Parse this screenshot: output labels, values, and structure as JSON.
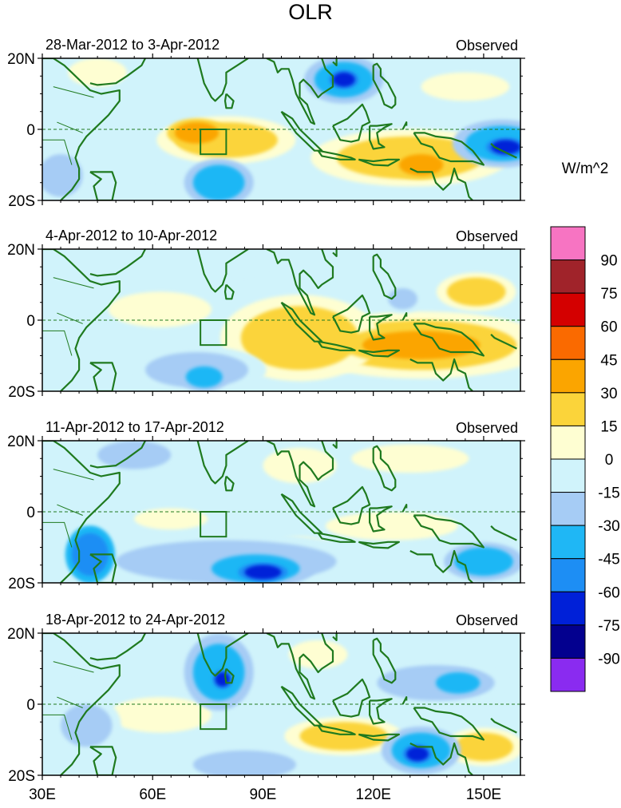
{
  "chart_data": {
    "type": "heatmap",
    "title": "OLR",
    "units_label": "W/m^2",
    "x_ticks": [
      "30E",
      "60E",
      "90E",
      "120E",
      "150E"
    ],
    "x_tick_values": [
      30,
      60,
      90,
      120,
      150
    ],
    "xlim": [
      30,
      160
    ],
    "y_ticks": [
      "20N",
      "0",
      "20S"
    ],
    "y_tick_values": [
      20,
      0,
      -20
    ],
    "ylim": [
      -20,
      20
    ],
    "equator_line": "dashed",
    "box_region": {
      "lon": [
        73,
        80
      ],
      "lat": [
        -7,
        0
      ]
    },
    "colorbar": {
      "levels": [
        90,
        75,
        60,
        45,
        30,
        15,
        0,
        -15,
        -30,
        -45,
        -60,
        -75,
        -90
      ],
      "colors": [
        "#f774c2",
        "#a0232a",
        "#d40000",
        "#fa6a00",
        "#fba500",
        "#fbd43a",
        "#fefed2",
        "#d0f3fb",
        "#a6ccf5",
        "#1fb7f5",
        "#1d8ef4",
        "#0020d8",
        "#03008f",
        "#8a2bf0"
      ]
    },
    "panels": [
      {
        "period": "28-Mar-2012 to 3-Apr-2012",
        "label": "Observed",
        "anomalies": [
          {
            "lon": 80,
            "lat": -3,
            "rx": 14,
            "ry": 5,
            "v": 30
          },
          {
            "lon": 72,
            "lat": -1,
            "rx": 6,
            "ry": 3,
            "v": 45
          },
          {
            "lon": 130,
            "lat": -8,
            "rx": 20,
            "ry": 6,
            "v": 30
          },
          {
            "lon": 133,
            "lat": -10,
            "rx": 6,
            "ry": 3,
            "v": 45
          },
          {
            "lon": 112,
            "lat": 14,
            "rx": 8,
            "ry": 5,
            "v": -45
          },
          {
            "lon": 112,
            "lat": 14,
            "rx": 3,
            "ry": 2,
            "v": -75
          },
          {
            "lon": 155,
            "lat": -4,
            "rx": 10,
            "ry": 5,
            "v": -45
          },
          {
            "lon": 156,
            "lat": -5,
            "rx": 4,
            "ry": 2,
            "v": -75
          },
          {
            "lon": 78,
            "lat": -15,
            "rx": 7,
            "ry": 5,
            "v": -45
          },
          {
            "lon": 35,
            "lat": -13,
            "rx": 6,
            "ry": 6,
            "v": -30
          },
          {
            "lon": 45,
            "lat": 16,
            "rx": 8,
            "ry": 4,
            "v": 15
          },
          {
            "lon": 145,
            "lat": 12,
            "rx": 12,
            "ry": 4,
            "v": 15
          },
          {
            "lon": 95,
            "lat": 10,
            "rx": 6,
            "ry": 5,
            "v": -15
          },
          {
            "lon": 60,
            "lat": -12,
            "rx": 5,
            "ry": 4,
            "v": -15
          }
        ]
      },
      {
        "period": "4-Apr-2012 to 10-Apr-2012",
        "label": "Observed",
        "anomalies": [
          {
            "lon": 133,
            "lat": -7,
            "rx": 26,
            "ry": 7,
            "v": 30
          },
          {
            "lon": 133,
            "lat": -7,
            "rx": 16,
            "ry": 4,
            "v": 45
          },
          {
            "lon": 100,
            "lat": -5,
            "rx": 16,
            "ry": 9,
            "v": 30
          },
          {
            "lon": 62,
            "lat": 3,
            "rx": 14,
            "ry": 5,
            "v": 15
          },
          {
            "lon": 148,
            "lat": 8,
            "rx": 8,
            "ry": 4,
            "v": 30
          },
          {
            "lon": 72,
            "lat": -14,
            "rx": 14,
            "ry": 5,
            "v": -30
          },
          {
            "lon": 74,
            "lat": -16,
            "rx": 5,
            "ry": 3,
            "v": -45
          },
          {
            "lon": 40,
            "lat": -10,
            "rx": 6,
            "ry": 5,
            "v": -15
          },
          {
            "lon": 42,
            "lat": 16,
            "rx": 8,
            "ry": 4,
            "v": -15
          },
          {
            "lon": 128,
            "lat": 6,
            "rx": 4,
            "ry": 3,
            "v": -30
          },
          {
            "lon": 85,
            "lat": 15,
            "rx": 8,
            "ry": 4,
            "v": -15
          }
        ]
      },
      {
        "period": "11-Apr-2012 to 17-Apr-2012",
        "label": "Observed",
        "anomalies": [
          {
            "lon": 80,
            "lat": -14,
            "rx": 30,
            "ry": 6,
            "v": -30
          },
          {
            "lon": 88,
            "lat": -16,
            "rx": 12,
            "ry": 4,
            "v": -45
          },
          {
            "lon": 90,
            "lat": -17,
            "rx": 5,
            "ry": 2,
            "v": -75
          },
          {
            "lon": 43,
            "lat": -12,
            "rx": 5,
            "ry": 6,
            "v": -60
          },
          {
            "lon": 55,
            "lat": 16,
            "rx": 10,
            "ry": 4,
            "v": -30
          },
          {
            "lon": 150,
            "lat": -14,
            "rx": 8,
            "ry": 4,
            "v": -45
          },
          {
            "lon": 125,
            "lat": -4,
            "rx": 18,
            "ry": 4,
            "v": 15
          },
          {
            "lon": 130,
            "lat": 15,
            "rx": 16,
            "ry": 4,
            "v": 15
          },
          {
            "lon": 100,
            "lat": 13,
            "rx": 10,
            "ry": 5,
            "v": 15
          },
          {
            "lon": 65,
            "lat": -2,
            "rx": 10,
            "ry": 3,
            "v": 15
          },
          {
            "lon": 100,
            "lat": -12,
            "rx": 10,
            "ry": 5,
            "v": 15
          }
        ]
      },
      {
        "period": "18-Apr-2012 to 24-Apr-2012",
        "label": "Observed",
        "anomalies": [
          {
            "lon": 78,
            "lat": 9,
            "rx": 7,
            "ry": 8,
            "v": -45
          },
          {
            "lon": 79,
            "lat": 7,
            "rx": 2,
            "ry": 2,
            "v": -75
          },
          {
            "lon": 137,
            "lat": 6,
            "rx": 16,
            "ry": 5,
            "v": -30
          },
          {
            "lon": 143,
            "lat": 6,
            "rx": 6,
            "ry": 3,
            "v": -45
          },
          {
            "lon": 133,
            "lat": -13,
            "rx": 8,
            "ry": 5,
            "v": -45
          },
          {
            "lon": 132,
            "lat": -14,
            "rx": 3,
            "ry": 2,
            "v": -75
          },
          {
            "lon": 85,
            "lat": -17,
            "rx": 14,
            "ry": 4,
            "v": -30
          },
          {
            "lon": 112,
            "lat": -9,
            "rx": 12,
            "ry": 4,
            "v": 30
          },
          {
            "lon": 62,
            "lat": -3,
            "rx": 14,
            "ry": 5,
            "v": 15
          },
          {
            "lon": 150,
            "lat": -12,
            "rx": 8,
            "ry": 4,
            "v": 30
          },
          {
            "lon": 42,
            "lat": -6,
            "rx": 7,
            "ry": 6,
            "v": -30
          },
          {
            "lon": 40,
            "lat": 12,
            "rx": 8,
            "ry": 5,
            "v": -15
          },
          {
            "lon": 105,
            "lat": 14,
            "rx": 8,
            "ry": 4,
            "v": 15
          }
        ]
      }
    ]
  }
}
